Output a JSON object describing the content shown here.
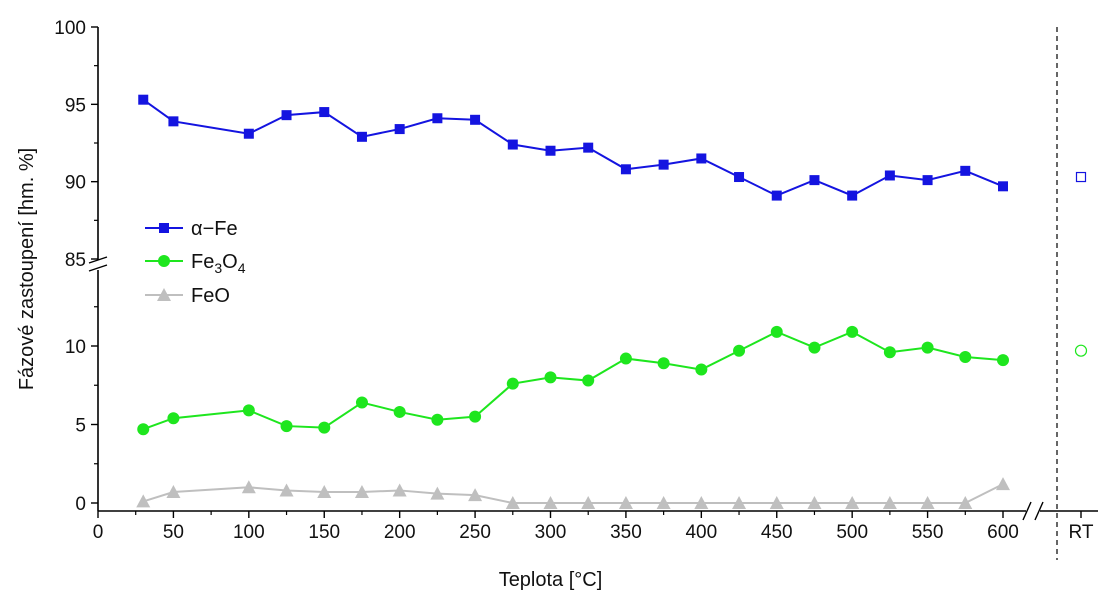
{
  "chart_data": {
    "type": "line",
    "xlabel": "Teplota [°C]",
    "ylabel": "Fázové zastoupení [hm. %]",
    "x": [
      30,
      50,
      100,
      125,
      150,
      175,
      200,
      225,
      250,
      275,
      300,
      325,
      350,
      375,
      400,
      425,
      450,
      475,
      500,
      525,
      550,
      575,
      600
    ],
    "xlim": [
      0,
      640
    ],
    "x_ticks": [
      "0",
      "50",
      "100",
      "150",
      "200",
      "250",
      "300",
      "350",
      "400",
      "450",
      "500",
      "550",
      "600"
    ],
    "x_extra_tick": "RT",
    "y_lower_ticks": [
      "0",
      "5",
      "10"
    ],
    "y_upper_ticks": [
      "85",
      "90",
      "95",
      "100"
    ],
    "y_lower_range": [
      0,
      14
    ],
    "y_upper_range": [
      85,
      100
    ],
    "axis_break": true,
    "grid": false,
    "legend_position": "left-middle",
    "series": [
      {
        "name": "α−Fe",
        "marker": "square",
        "color": "#1414e0",
        "values": [
          95.3,
          93.9,
          93.1,
          94.3,
          94.5,
          92.9,
          93.4,
          94.1,
          94.0,
          92.4,
          92.0,
          92.2,
          90.8,
          91.1,
          91.5,
          90.3,
          89.1,
          90.1,
          89.1,
          90.4,
          90.1,
          90.7,
          89.7
        ],
        "rt_value": 90.3
      },
      {
        "name": "Fe3O4",
        "marker": "circle",
        "color": "#1ee61e",
        "values": [
          4.7,
          5.4,
          5.9,
          4.9,
          4.8,
          6.4,
          5.8,
          5.3,
          5.5,
          7.6,
          8.0,
          7.8,
          9.2,
          8.9,
          8.5,
          9.7,
          10.9,
          9.9,
          10.9,
          9.6,
          9.9,
          9.3,
          9.1
        ],
        "rt_value": 9.7
      },
      {
        "name": "FeO",
        "marker": "triangle",
        "color": "#bfbfbf",
        "values": [
          0.1,
          0.7,
          1.0,
          0.8,
          0.7,
          0.7,
          0.8,
          0.6,
          0.5,
          0.0,
          0.0,
          0.0,
          0.0,
          0.0,
          0.0,
          0.0,
          0.0,
          0.0,
          0.0,
          0.0,
          0.0,
          0.0,
          1.2
        ]
      }
    ],
    "legend_labels": {
      "fe": "α−Fe",
      "fe3o4_main": "Fe",
      "fe3o4_sub1": "3",
      "fe3o4_mid": "O",
      "fe3o4_sub2": "4",
      "feo": "FeO"
    }
  }
}
